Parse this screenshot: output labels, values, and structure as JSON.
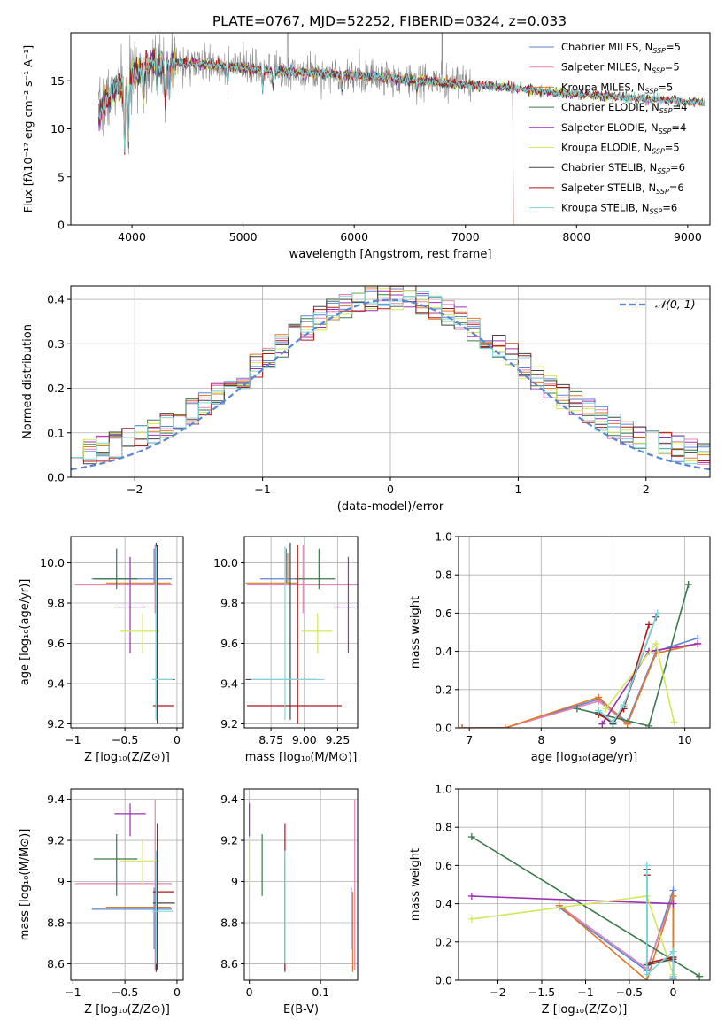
{
  "colors": {
    "chabrier_miles": "#5b86d6",
    "salpeter_miles": "#e882b4",
    "kroupa_miles": "#e07a2a",
    "chabrier_elodie": "#3a7a4a",
    "salpeter_elodie": "#9b30b5",
    "kroupa_elodie": "#d2e85a",
    "chabrier_stelib": "#444444",
    "salpeter_stelib": "#b01818",
    "kroupa_stelib": "#7dd6dc",
    "data_gray": "#888888",
    "normal_curve": "#5b86d6",
    "grid": "#b0b0b0"
  },
  "legend_series": [
    {
      "label": "Chabrier MILES, N",
      "sub": "SSP",
      "n": "=5",
      "color_key": "chabrier_miles"
    },
    {
      "label": "Salpeter MILES, N",
      "sub": "SSP",
      "n": "=5",
      "color_key": "salpeter_miles"
    },
    {
      "label": "Kroupa MILES, N",
      "sub": "SSP",
      "n": "=5",
      "color_key": "kroupa_miles"
    },
    {
      "label": "Chabrier ELODIE, N",
      "sub": "SSP",
      "n": "=4",
      "color_key": "chabrier_elodie"
    },
    {
      "label": "Salpeter ELODIE, N",
      "sub": "SSP",
      "n": "=4",
      "color_key": "salpeter_elodie"
    },
    {
      "label": "Kroupa ELODIE, N",
      "sub": "SSP",
      "n": "=5",
      "color_key": "kroupa_elodie"
    },
    {
      "label": "Chabrier STELIB, N",
      "sub": "SSP",
      "n": "=6",
      "color_key": "chabrier_stelib"
    },
    {
      "label": "Salpeter STELIB, N",
      "sub": "SSP",
      "n": "=6",
      "color_key": "salpeter_stelib"
    },
    {
      "label": "Kroupa STELIB, N",
      "sub": "SSP",
      "n": "=6",
      "color_key": "kroupa_stelib"
    }
  ],
  "chart_data": [
    {
      "id": "spectrum",
      "type": "line",
      "title": "PLATE=0767, MJD=52252, FIBERID=0324, z=0.033",
      "xlabel": "wavelength [Angstrom, rest frame]",
      "ylabel": "Flux [fλ10⁻¹⁷ erg cm⁻² s⁻¹ A⁻¹]",
      "xlim": [
        3450,
        9200
      ],
      "ylim": [
        0,
        20
      ],
      "xticks": [
        4000,
        5000,
        6000,
        7000,
        8000,
        9000
      ],
      "yticks": [
        0,
        5,
        10,
        15
      ],
      "continuum_x": [
        3700,
        3800,
        3900,
        4000,
        4100,
        4200,
        4300,
        4500,
        4800,
        5000,
        5300,
        5600,
        6000,
        6300,
        6600,
        7000,
        7400,
        7600,
        8000,
        8500,
        9000,
        9150
      ],
      "continuum_y": [
        11.5,
        13.5,
        14.5,
        15.5,
        16.5,
        16.8,
        16.9,
        16.8,
        16.6,
        16.3,
        16.0,
        15.8,
        15.6,
        15.3,
        15.0,
        14.6,
        14.3,
        14.0,
        13.6,
        13.2,
        12.8,
        12.7
      ],
      "model_cutoff_x": 7430,
      "data_range_x": [
        3700,
        7050
      ],
      "model_range_x": [
        3700,
        9150
      ],
      "grid": false
    },
    {
      "id": "residuals",
      "type": "histogram",
      "xlabel": "(data-model)/error",
      "ylabel": "Normed distribution",
      "xlim": [
        -2.5,
        2.5
      ],
      "ylim": [
        0,
        0.43
      ],
      "xticks": [
        -2,
        -1,
        0,
        1,
        2
      ],
      "yticks": [
        0.0,
        0.1,
        0.2,
        0.3,
        0.4
      ],
      "bin_width": 0.1,
      "reference": {
        "name": "𝒩(0, 1)",
        "mean": 0,
        "sigma": 1
      },
      "grid": true
    },
    {
      "id": "age_vs_Z",
      "type": "scatter",
      "xlabel": "Z [log₁₀(Z/Z⊙)]",
      "ylabel": "age  [log₁₀(age/yr)]",
      "xlim": [
        -1.02,
        0.06
      ],
      "ylim": [
        9.18,
        10.13
      ],
      "xticks": [
        -1.0,
        -0.5,
        0.0
      ],
      "ytick_labels": [
        "9.2",
        "9.4",
        "9.6",
        "9.8",
        "10.0"
      ],
      "yticks": [
        9.2,
        9.4,
        9.6,
        9.8,
        10.0
      ],
      "grid": true
    },
    {
      "id": "age_vs_mass",
      "type": "scatter",
      "xlabel": "mass [log₁₀(M/M⊙)]",
      "xlim": [
        8.55,
        9.4
      ],
      "ylim": [
        9.18,
        10.13
      ],
      "xticks": [
        8.75,
        9.0,
        9.25
      ],
      "xtick_labels": [
        "8.75",
        "9.00",
        "9.25"
      ],
      "ytick_labels": [
        "9.2",
        "9.4",
        "9.6",
        "9.8",
        "10.0"
      ],
      "yticks": [
        9.2,
        9.4,
        9.6,
        9.8,
        10.0
      ],
      "grid": true
    },
    {
      "id": "weight_vs_age",
      "type": "line",
      "xlabel": "age  [log₁₀(age/yr)]",
      "ylabel": "mass weight",
      "xlim": [
        6.85,
        10.35
      ],
      "ylim": [
        0,
        1
      ],
      "xticks": [
        7,
        8,
        9,
        10
      ],
      "yticks": [
        0.0,
        0.2,
        0.4,
        0.6,
        0.8,
        1.0
      ],
      "grid": true
    },
    {
      "id": "mass_vs_Z",
      "type": "scatter",
      "xlabel": "Z [log₁₀(Z/Z⊙)]",
      "ylabel": "mass [log₁₀(M/M⊙)]",
      "xlim": [
        -1.02,
        0.06
      ],
      "ylim": [
        8.52,
        9.45
      ],
      "xticks": [
        -1.0,
        -0.5,
        0.0
      ],
      "yticks": [
        8.6,
        8.8,
        9.0,
        9.2,
        9.4
      ],
      "grid": true
    },
    {
      "id": "mass_vs_ebv",
      "type": "scatter",
      "xlabel": "E(B-V)",
      "xlim": [
        -0.007,
        0.152
      ],
      "ylim": [
        8.52,
        9.45
      ],
      "xticks": [
        0.0,
        0.1
      ],
      "yticks": [
        8.6,
        8.8,
        9.0,
        9.2,
        9.4
      ],
      "grid": true
    },
    {
      "id": "weight_vs_Z",
      "type": "line",
      "xlabel": "Z [log₁₀(Z/Z⊙)]",
      "ylabel": "mass weight",
      "xlim": [
        -2.45,
        0.42
      ],
      "ylim": [
        0,
        1
      ],
      "xticks": [
        -2.0,
        -1.5,
        -1.0,
        -0.5,
        0.0
      ],
      "yticks": [
        0.0,
        0.2,
        0.4,
        0.6,
        0.8,
        1.0
      ],
      "grid": true
    }
  ],
  "fits": [
    {
      "key": "chabrier_miles",
      "Z": -0.22,
      "Zlo": -0.82,
      "Zhi": -0.05,
      "age": 9.92,
      "ageLo": 9.9,
      "ageHi": 10.07,
      "mass": 8.865,
      "massLo": 8.67,
      "massHi": 8.97,
      "ebv": 0.143,
      "ages": [
        6.9,
        7.5,
        8.8,
        9.2,
        9.6,
        10.18
      ],
      "aw": [
        0.0,
        0.0,
        0.15,
        0.03,
        0.4,
        0.47
      ],
      "zs": [
        -1.3,
        -0.3,
        0.0,
        0.0
      ],
      "zw": [
        0.38,
        0.05,
        0.47,
        0.12
      ]
    },
    {
      "key": "salpeter_miles",
      "Z": -0.21,
      "Zlo": -0.98,
      "Zhi": -0.05,
      "age": 9.89,
      "ageLo": 9.75,
      "ageHi": 10.09,
      "mass": 8.99,
      "massLo": 8.57,
      "massHi": 9.4,
      "ebv": 0.148,
      "ages": [
        6.9,
        7.5,
        8.8,
        9.2,
        9.6,
        10.18
      ],
      "aw": [
        0.0,
        0.0,
        0.14,
        0.02,
        0.39,
        0.44
      ],
      "zs": [
        -1.3,
        -0.3,
        0.0,
        0.0
      ],
      "zw": [
        0.39,
        0.06,
        0.44,
        0.1
      ]
    },
    {
      "key": "kroupa_miles",
      "Z": -0.2,
      "Zlo": -0.68,
      "Zhi": -0.06,
      "age": 9.9,
      "ageLo": 9.9,
      "ageHi": 10.05,
      "mass": 8.875,
      "massLo": 8.56,
      "massHi": 8.95,
      "ebv": 0.145,
      "ages": [
        6.9,
        7.5,
        8.8,
        9.2,
        9.6,
        10.18
      ],
      "aw": [
        0.0,
        0.0,
        0.16,
        0.02,
        0.39,
        0.44
      ],
      "zs": [
        -1.3,
        -0.3,
        0.0,
        0.0
      ],
      "zw": [
        0.39,
        0.0,
        0.44,
        0.11
      ]
    },
    {
      "key": "chabrier_elodie",
      "Z": -0.58,
      "Zlo": -0.8,
      "Zhi": -0.38,
      "age": 9.92,
      "ageLo": 9.87,
      "ageHi": 10.07,
      "mass": 9.11,
      "massLo": 8.93,
      "massHi": 9.23,
      "ebv": 0.018,
      "ages": [
        8.5,
        9.5,
        10.05
      ],
      "aw": [
        0.1,
        0.01,
        0.75
      ],
      "zs": [
        -2.3,
        0.3
      ],
      "zw": [
        0.75,
        0.02
      ]
    },
    {
      "key": "salpeter_elodie",
      "Z": -0.45,
      "Zlo": -0.6,
      "Zhi": -0.3,
      "age": 9.78,
      "ageLo": 9.55,
      "ageHi": 10.03,
      "mass": 9.33,
      "massLo": 9.22,
      "massHi": 9.38,
      "ebv": 0.0,
      "ages": [
        8.85,
        9.5,
        10.18
      ],
      "aw": [
        0.02,
        0.4,
        0.44
      ],
      "zs": [
        -2.3,
        0.0
      ],
      "zw": [
        0.44,
        0.4
      ]
    },
    {
      "key": "kroupa_elodie",
      "Z": -0.33,
      "Zlo": -0.55,
      "Zhi": -0.17,
      "age": 9.66,
      "ageLo": 9.55,
      "ageHi": 9.75,
      "mass": 9.1,
      "massLo": 8.98,
      "massHi": 9.21,
      "ebv": 0.0,
      "ages": [
        8.9,
        9.6,
        9.85
      ],
      "aw": [
        0.1,
        0.44,
        0.03
      ],
      "zs": [
        -2.3,
        -0.3,
        0.0
      ],
      "zw": [
        0.32,
        0.44,
        0.03
      ]
    },
    {
      "key": "chabrier_stelib",
      "Z": -0.2,
      "Zlo": -0.23,
      "Zhi": -0.02,
      "age": 9.42,
      "ageLo": 9.22,
      "ageHi": 10.1,
      "mass": 8.895,
      "massLo": 8.56,
      "massHi": 9.1,
      "ebv": 0.05,
      "ages": [
        8.8,
        9.0,
        9.15,
        9.6
      ],
      "aw": [
        0.08,
        0.02,
        0.11,
        0.58
      ],
      "zs": [
        -0.3,
        -0.3,
        0.0,
        0.0
      ],
      "zw": [
        0.58,
        0.08,
        0.11,
        0.01
      ]
    },
    {
      "key": "salpeter_stelib",
      "Z": -0.19,
      "Zlo": -0.23,
      "Zhi": -0.03,
      "age": 9.29,
      "ageLo": 9.2,
      "ageHi": 10.09,
      "mass": 8.95,
      "massLo": 8.57,
      "massHi": 9.28,
      "ebv": 0.05,
      "ages": [
        8.8,
        9.0,
        9.15,
        9.5
      ],
      "aw": [
        0.07,
        0.03,
        0.1,
        0.54
      ],
      "zs": [
        -0.3,
        -0.3,
        0.0,
        0.0
      ],
      "zw": [
        0.55,
        0.09,
        0.12,
        0.02
      ]
    },
    {
      "key": "kroupa_stelib",
      "Z": -0.2,
      "Zlo": -0.24,
      "Zhi": -0.04,
      "age": 9.42,
      "ageLo": 9.22,
      "ageHi": 10.08,
      "mass": 8.855,
      "massLo": 8.6,
      "massHi": 9.15,
      "ebv": 0.05,
      "ages": [
        8.8,
        9.0,
        9.15,
        9.62
      ],
      "aw": [
        0.09,
        0.03,
        0.12,
        0.6
      ],
      "zs": [
        -0.3,
        -0.3,
        0.0,
        0.0
      ],
      "zw": [
        0.6,
        0.03,
        0.15,
        0.02
      ]
    }
  ]
}
